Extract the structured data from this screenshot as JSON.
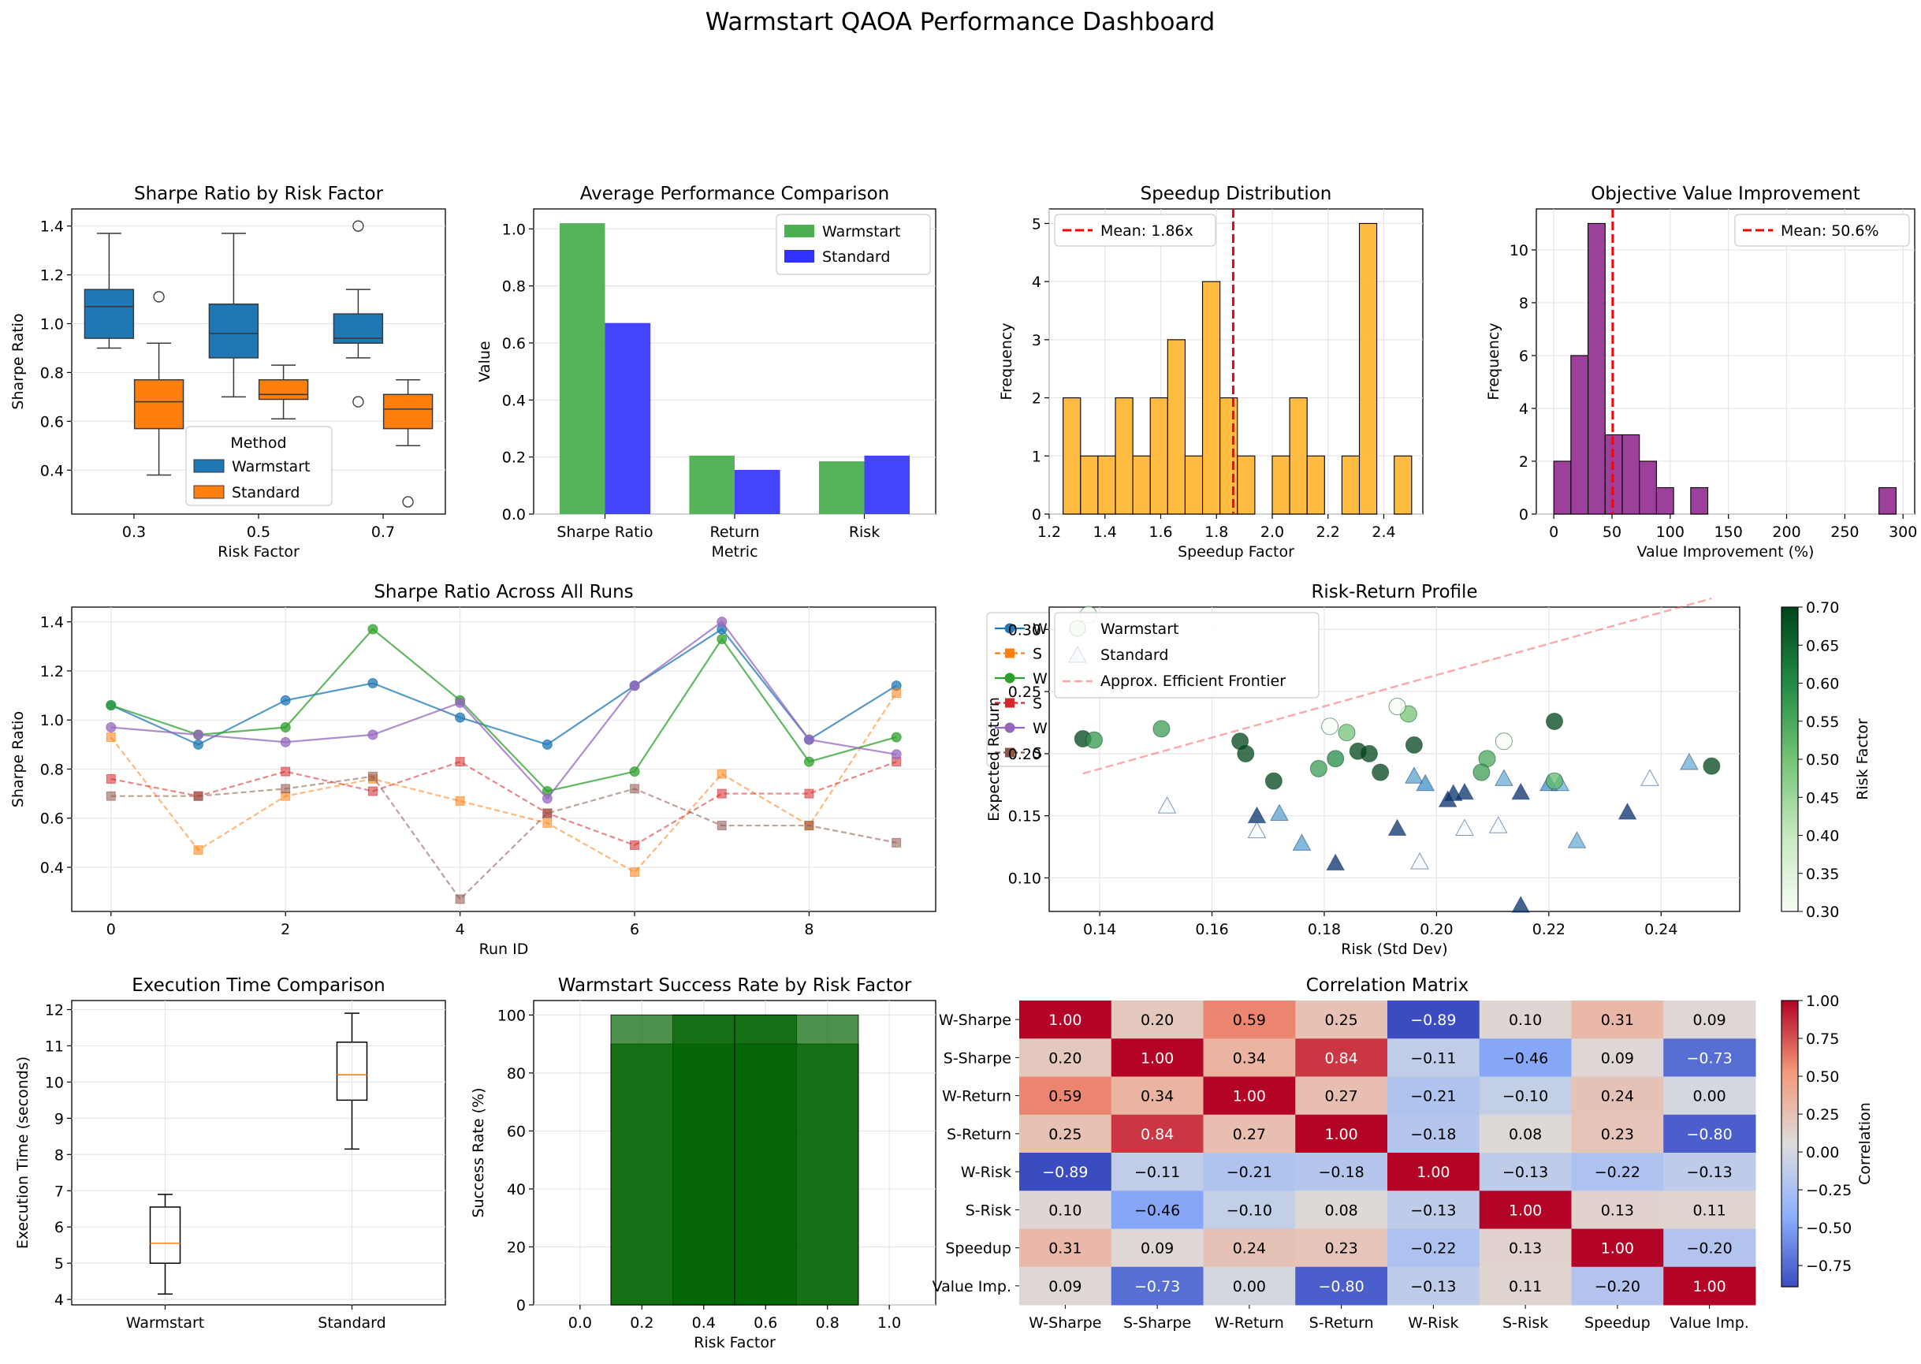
{
  "title": "Warmstart QAOA Performance Dashboard",
  "colors": {
    "warm_blue": "#1f77b4",
    "std_orange": "#ff7f0e",
    "green": "#2ca02c",
    "red": "#d62728",
    "purple": "#9467bd",
    "brown": "#8c564b",
    "gold": "#FFB020",
    "hist_purple": "#8B1F8B",
    "bar_green": "#4CAF50",
    "bar_blue": "#3030FF",
    "dark_green": "#006400"
  },
  "chart_data": [
    {
      "id": "box_risk",
      "type": "box",
      "title": "Sharpe Ratio by Risk Factor",
      "xlabel": "Risk Factor",
      "ylabel": "Sharpe Ratio",
      "categories": [
        "0.3",
        "0.5",
        "0.7"
      ],
      "ylim": [
        0.22,
        1.47
      ],
      "yticks": [
        0.4,
        0.6,
        0.8,
        1.0,
        1.2,
        1.4
      ],
      "legend": {
        "title": "Method",
        "entries": [
          "Warmstart",
          "Standard"
        ]
      },
      "series": [
        {
          "name": "Warmstart",
          "boxes": [
            {
              "whislo": 0.9,
              "q1": 0.94,
              "med": 1.07,
              "q3": 1.14,
              "whishi": 1.37,
              "fliers": []
            },
            {
              "whislo": 0.7,
              "q1": 0.86,
              "med": 0.96,
              "q3": 1.08,
              "whishi": 1.37,
              "fliers": []
            },
            {
              "whislo": 0.86,
              "q1": 0.92,
              "med": 0.94,
              "q3": 1.04,
              "whishi": 1.14,
              "fliers": [
                1.4,
                0.68
              ]
            }
          ]
        },
        {
          "name": "Standard",
          "boxes": [
            {
              "whislo": 0.38,
              "q1": 0.57,
              "med": 0.68,
              "q3": 0.77,
              "whishi": 0.92,
              "fliers": [
                1.11
              ]
            },
            {
              "whislo": 0.61,
              "q1": 0.69,
              "med": 0.71,
              "q3": 0.77,
              "whishi": 0.83,
              "fliers": []
            },
            {
              "whislo": 0.5,
              "q1": 0.57,
              "med": 0.65,
              "q3": 0.71,
              "whishi": 0.77,
              "fliers": [
                0.27
              ]
            }
          ]
        }
      ]
    },
    {
      "id": "avg_perf",
      "type": "bar",
      "title": "Average Performance Comparison",
      "xlabel": "Metric",
      "ylabel": "Value",
      "categories": [
        "Sharpe Ratio",
        "Return",
        "Risk"
      ],
      "ylim": [
        0,
        1.07
      ],
      "yticks": [
        0.0,
        0.2,
        0.4,
        0.6,
        0.8,
        1.0
      ],
      "series": [
        {
          "name": "Warmstart",
          "values": [
            1.02,
            0.205,
            0.185
          ]
        },
        {
          "name": "Standard",
          "values": [
            0.67,
            0.155,
            0.205
          ]
        }
      ]
    },
    {
      "id": "speedup",
      "type": "histogram",
      "title": "Speedup Distribution",
      "xlabel": "Speedup Factor",
      "ylabel": "Frequency",
      "xlim": [
        1.2,
        2.54
      ],
      "ylim": [
        0,
        5.25
      ],
      "xticks": [
        1.2,
        1.4,
        1.6,
        1.8,
        2.0,
        2.2,
        2.4
      ],
      "yticks": [
        0,
        1,
        2,
        3,
        4,
        5
      ],
      "bin_start": 1.25,
      "bin_width": 0.0625,
      "counts": [
        2,
        1,
        1,
        2,
        1,
        2,
        3,
        1,
        4,
        2,
        1,
        0,
        1,
        2,
        1,
        0,
        1,
        5,
        0,
        1
      ],
      "mean": 1.86,
      "mean_label": "Mean: 1.86x"
    },
    {
      "id": "objective",
      "type": "histogram",
      "title": "Objective Value Improvement",
      "xlabel": "Value Improvement (%)",
      "ylabel": "Frequency",
      "xlim": [
        -15,
        310
      ],
      "ylim": [
        0,
        11.55
      ],
      "xticks": [
        0,
        50,
        100,
        150,
        200,
        250,
        300
      ],
      "yticks": [
        0,
        2,
        4,
        6,
        8,
        10
      ],
      "bin_start": 0,
      "bin_width": 14.7,
      "counts": [
        2,
        6,
        11,
        3,
        3,
        2,
        1,
        0,
        1,
        0,
        0,
        0,
        0,
        0,
        0,
        0,
        0,
        0,
        0,
        1
      ],
      "mean": 50.6,
      "mean_label": "Mean: 50.6%"
    },
    {
      "id": "runs",
      "type": "line",
      "title": "Sharpe Ratio Across All Runs",
      "xlabel": "Run ID",
      "ylabel": "Sharpe Ratio",
      "x": [
        0,
        1,
        2,
        3,
        4,
        5,
        6,
        7,
        8,
        9
      ],
      "xlim": [
        -0.45,
        9.45
      ],
      "ylim": [
        0.22,
        1.46
      ],
      "xticks": [
        0,
        2,
        4,
        6,
        8
      ],
      "yticks": [
        0.4,
        0.6,
        0.8,
        1.0,
        1.2,
        1.4
      ],
      "series": [
        {
          "values": [
            1.06,
            0.9,
            1.08,
            1.15,
            1.01,
            0.9,
            1.14,
            1.37,
            0.92,
            1.14
          ]
        },
        {
          "values": [
            0.93,
            0.47,
            0.69,
            0.76,
            0.67,
            0.58,
            0.38,
            0.78,
            0.57,
            1.11
          ]
        },
        {
          "values": [
            1.06,
            0.94,
            0.97,
            1.37,
            1.08,
            0.71,
            0.79,
            1.33,
            0.83,
            0.93
          ]
        },
        {
          "values": [
            0.76,
            0.69,
            0.79,
            0.71,
            0.83,
            0.62,
            0.49,
            0.7,
            0.7,
            0.83
          ]
        },
        {
          "values": [
            0.97,
            0.94,
            0.91,
            0.94,
            1.07,
            0.68,
            1.14,
            1.4,
            0.92,
            0.86
          ]
        },
        {
          "values": [
            0.69,
            0.69,
            0.72,
            0.77,
            0.27,
            0.62,
            0.72,
            0.57,
            0.57,
            0.5
          ]
        }
      ],
      "behind_legend_labels": [
        "W",
        "S",
        "W",
        "S",
        "W",
        "S"
      ]
    },
    {
      "id": "risk_return",
      "type": "scatter",
      "title": "Risk-Return Profile",
      "xlabel": "Risk (Std Dev)",
      "ylabel": "Expected Return",
      "xlim": [
        0.131,
        0.254
      ],
      "ylim": [
        0.073,
        0.318
      ],
      "xticks": [
        0.14,
        0.16,
        0.18,
        0.2,
        0.22,
        0.24
      ],
      "yticks": [
        0.1,
        0.15,
        0.2,
        0.25,
        0.3
      ],
      "legend": [
        "Warmstart",
        "Standard",
        "Approx. Efficient Frontier"
      ],
      "colorbar": {
        "label": "Risk Factor",
        "range": [
          0.3,
          0.7
        ],
        "ticks": [
          0.3,
          0.35,
          0.4,
          0.45,
          0.5,
          0.55,
          0.6,
          0.65,
          0.7
        ]
      },
      "frontier": [
        [
          0.137,
          0.184
        ],
        [
          0.249,
          0.325
        ]
      ],
      "warmstart": [
        [
          0.137,
          0.212,
          0.7
        ],
        [
          0.139,
          0.211,
          0.58
        ],
        [
          0.151,
          0.22,
          0.57
        ],
        [
          0.165,
          0.21,
          0.7
        ],
        [
          0.166,
          0.2,
          0.7
        ],
        [
          0.171,
          0.178,
          0.7
        ],
        [
          0.179,
          0.188,
          0.57
        ],
        [
          0.182,
          0.196,
          0.6
        ],
        [
          0.184,
          0.217,
          0.5
        ],
        [
          0.186,
          0.202,
          0.7
        ],
        [
          0.188,
          0.2,
          0.7
        ],
        [
          0.19,
          0.185,
          0.7
        ],
        [
          0.195,
          0.232,
          0.5
        ],
        [
          0.196,
          0.207,
          0.7
        ],
        [
          0.209,
          0.196,
          0.55
        ],
        [
          0.208,
          0.185,
          0.57
        ],
        [
          0.212,
          0.21,
          0.3
        ],
        [
          0.221,
          0.226,
          0.7
        ],
        [
          0.221,
          0.178,
          0.52
        ],
        [
          0.249,
          0.19,
          0.7
        ],
        [
          0.138,
          0.312,
          0.3
        ],
        [
          0.181,
          0.222,
          0.3
        ],
        [
          0.193,
          0.238,
          0.3
        ]
      ],
      "standard": [
        [
          0.168,
          0.15,
          0.7
        ],
        [
          0.172,
          0.152,
          0.52
        ],
        [
          0.176,
          0.128,
          0.52
        ],
        [
          0.182,
          0.112,
          0.7
        ],
        [
          0.193,
          0.14,
          0.7
        ],
        [
          0.196,
          0.182,
          0.52
        ],
        [
          0.198,
          0.176,
          0.55
        ],
        [
          0.202,
          0.163,
          0.7
        ],
        [
          0.203,
          0.168,
          0.7
        ],
        [
          0.205,
          0.169,
          0.7
        ],
        [
          0.215,
          0.169,
          0.7
        ],
        [
          0.215,
          0.078,
          0.7
        ],
        [
          0.22,
          0.176,
          0.55
        ],
        [
          0.222,
          0.176,
          0.5
        ],
        [
          0.212,
          0.18,
          0.5
        ],
        [
          0.225,
          0.13,
          0.5
        ],
        [
          0.234,
          0.153,
          0.7
        ],
        [
          0.245,
          0.193,
          0.5
        ],
        [
          0.152,
          0.158,
          0.3
        ],
        [
          0.168,
          0.138,
          0.3
        ],
        [
          0.197,
          0.113,
          0.3
        ],
        [
          0.205,
          0.14,
          0.3
        ],
        [
          0.211,
          0.142,
          0.3
        ],
        [
          0.238,
          0.18,
          0.3
        ]
      ]
    },
    {
      "id": "exec_time",
      "type": "box",
      "title": "Execution Time Comparison",
      "ylabel": "Execution Time (seconds)",
      "categories": [
        "Warmstart",
        "Standard"
      ],
      "ylim": [
        3.85,
        12.25
      ],
      "yticks": [
        4,
        5,
        6,
        7,
        8,
        9,
        10,
        11,
        12
      ],
      "boxes": [
        {
          "whislo": 4.15,
          "q1": 5.0,
          "med": 5.55,
          "q3": 6.55,
          "whishi": 6.9
        },
        {
          "whislo": 8.15,
          "q1": 9.5,
          "med": 10.2,
          "q3": 11.1,
          "whishi": 11.9
        }
      ]
    },
    {
      "id": "success",
      "type": "bar",
      "title": "Warmstart Success Rate by Risk Factor",
      "xlabel": "Risk Factor",
      "ylabel": "Success Rate (%)",
      "xlim": [
        -0.15,
        1.15
      ],
      "ylim": [
        0,
        105
      ],
      "xticks": [
        0.0,
        0.2,
        0.4,
        0.6,
        0.8,
        1.0
      ],
      "yticks": [
        0,
        20,
        40,
        60,
        80,
        100
      ],
      "bars": [
        {
          "x": 0.3,
          "value": 90
        },
        {
          "x": 0.5,
          "value": 100
        },
        {
          "x": 0.7,
          "value": 90
        },
        {
          "x": 0.3,
          "value": 100
        },
        {
          "x": 0.7,
          "value": 100
        }
      ]
    },
    {
      "id": "corr",
      "type": "heatmap",
      "title": "Correlation Matrix",
      "labels": [
        "W-Sharpe",
        "S-Sharpe",
        "W-Return",
        "S-Return",
        "W-Risk",
        "S-Risk",
        "Speedup",
        "Value Imp."
      ],
      "values": [
        [
          1.0,
          0.2,
          0.59,
          0.25,
          -0.89,
          0.1,
          0.31,
          0.09
        ],
        [
          0.2,
          1.0,
          0.34,
          0.84,
          -0.11,
          -0.46,
          0.09,
          -0.73
        ],
        [
          0.59,
          0.34,
          1.0,
          0.27,
          -0.21,
          -0.1,
          0.24,
          0.0
        ],
        [
          0.25,
          0.84,
          0.27,
          1.0,
          -0.18,
          0.08,
          0.23,
          -0.8
        ],
        [
          -0.89,
          -0.11,
          -0.21,
          -0.18,
          1.0,
          -0.13,
          -0.22,
          -0.13
        ],
        [
          0.1,
          -0.46,
          -0.1,
          0.08,
          -0.13,
          1.0,
          0.13,
          0.11
        ],
        [
          0.31,
          0.09,
          0.24,
          0.23,
          -0.22,
          0.13,
          1.0,
          -0.2
        ],
        [
          0.09,
          -0.73,
          0.0,
          -0.8,
          -0.13,
          0.11,
          -0.2,
          1.0
        ]
      ],
      "colorbar": {
        "label": "Correlation",
        "range": [
          -0.89,
          1.0
        ],
        "ticks": [
          1.0,
          0.75,
          0.5,
          0.25,
          0.0,
          -0.25,
          -0.5,
          -0.75
        ],
        "tick_labels": [
          "1.00",
          "0.75",
          "0.50",
          "0.25",
          "0.00",
          "−0.25",
          "−0.50",
          "−0.75"
        ]
      }
    }
  ]
}
